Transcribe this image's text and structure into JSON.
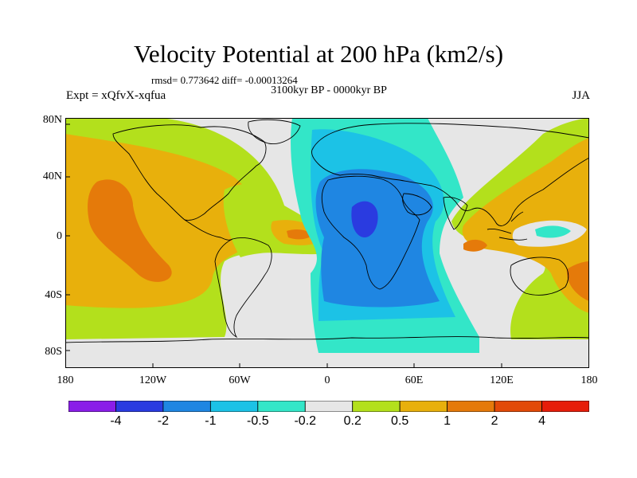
{
  "title": "Velocity Potential at 200 hPa (km2/s)",
  "stats_line": "rmsd= 0.773642 diff= -0.00013264",
  "period": "3100kyr BP - 0000kyr BP",
  "experiment": "Expt = xQfvX-xqfua",
  "season": "JJA",
  "y_axis_labels": [
    "80N",
    "40N",
    "0",
    "40S",
    "80S"
  ],
  "x_axis_labels": [
    "180",
    "120W",
    "60W",
    "0",
    "60E",
    "120E",
    "180"
  ],
  "colorbar": {
    "labels": [
      "-4",
      "-2",
      "-1",
      "-0.5",
      "-0.2",
      "0.2",
      "0.5",
      "1",
      "2",
      "4"
    ],
    "colors": [
      "#8a1ee8",
      "#2a3be0",
      "#1f86e2",
      "#1cc2e6",
      "#33e6c8",
      "#e6e6e6",
      "#b3e01c",
      "#e8b00c",
      "#e57a0a",
      "#e24a08",
      "#e61e0a"
    ]
  },
  "map_palette": {
    "neutral": "#e6e6e6",
    "pos_weak": "#b3e01c",
    "pos_mid": "#e8b00c",
    "pos_strong": "#e57a0a",
    "pos_peak": "#e24a08",
    "neg_weak": "#33e6c8",
    "neg_light": "#1cc2e6",
    "neg_mid": "#1f86e2",
    "neg_strong": "#2a3be0"
  }
}
